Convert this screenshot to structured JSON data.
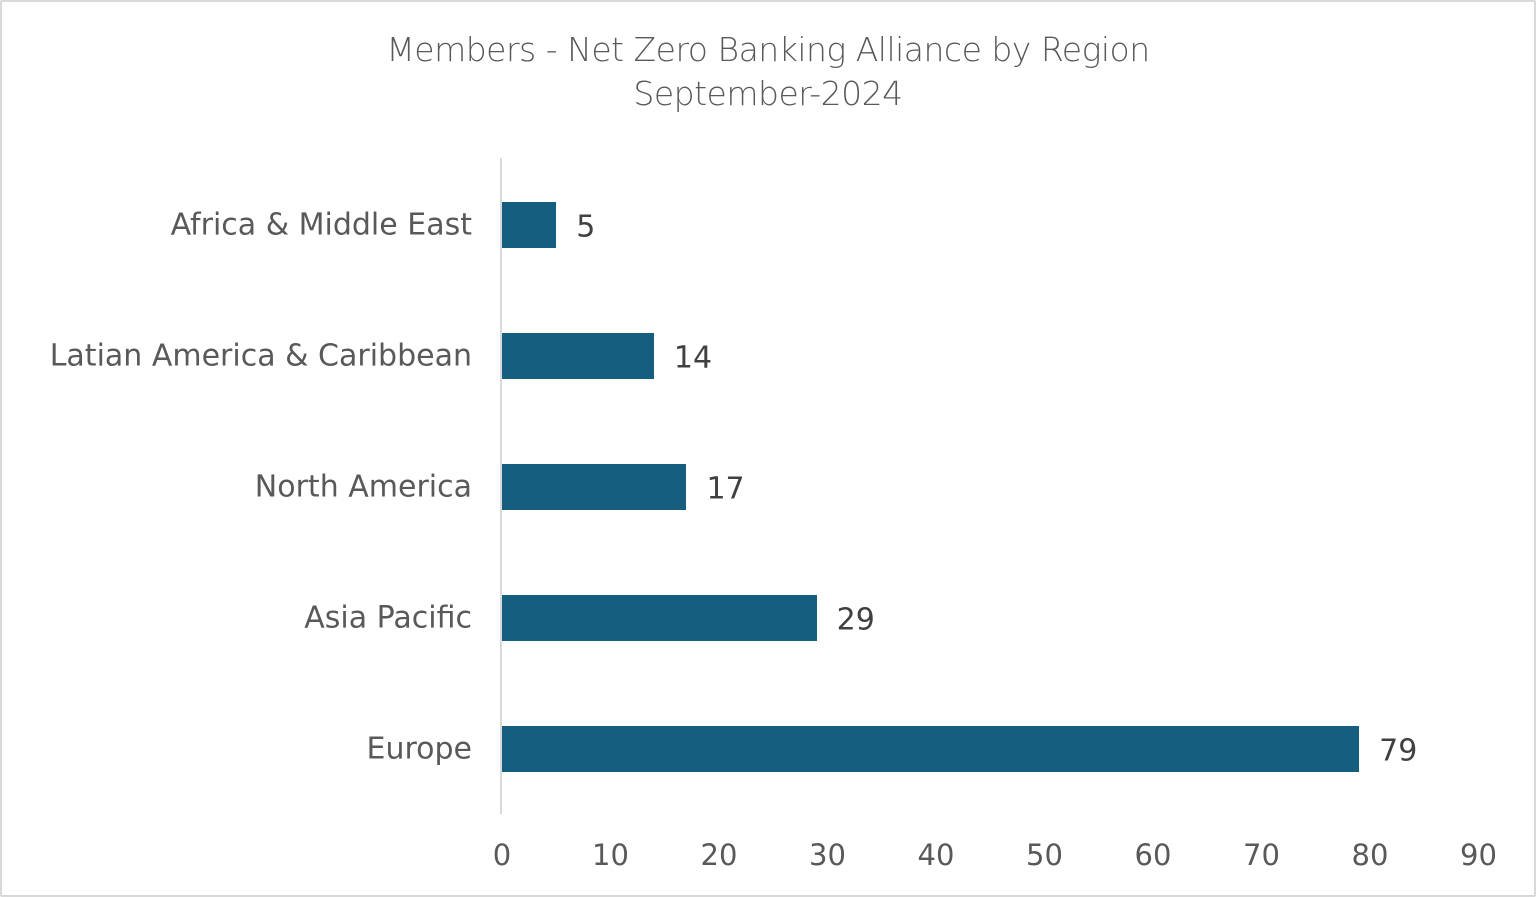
{
  "chart_data": {
    "type": "bar",
    "orientation": "horizontal",
    "title": "Members - Net Zero Banking Alliance by Region",
    "subtitle": "September-2024",
    "categories": [
      "Africa & Middle East",
      "Latian America & Caribbean",
      "North America",
      "Asia Pacific",
      "Europe"
    ],
    "values": [
      5,
      14,
      17,
      29,
      79
    ],
    "data_labels": [
      "5",
      "14",
      "17",
      "29",
      "79"
    ],
    "xlabel": "",
    "ylabel": "",
    "xlim": [
      0,
      90
    ],
    "x_ticks": [
      "0",
      "10",
      "20",
      "30",
      "40",
      "50",
      "60",
      "70",
      "80",
      "90"
    ],
    "grid": false,
    "legend": "none",
    "bar_color": "#165e80"
  }
}
